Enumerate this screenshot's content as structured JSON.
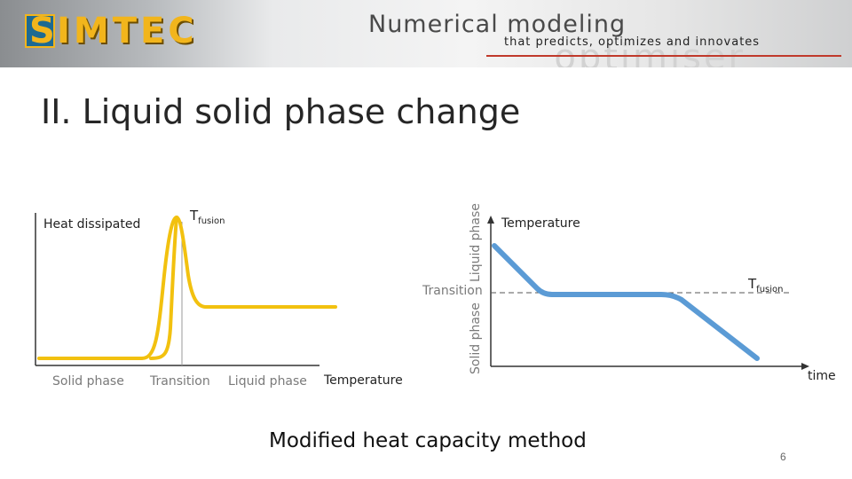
{
  "header": {
    "logo_text": "SIMTEC",
    "tagline_main": "Numerical modeling",
    "tagline_sub": "that predicts, optimizes and innovates",
    "bg_decoration": "optimiser"
  },
  "slide": {
    "title": "II. Liquid solid phase change",
    "caption": "Modified heat capacity method",
    "page_number": "6"
  },
  "chart_data": [
    {
      "type": "line",
      "ylabel": "Heat dissipated",
      "xlabel": "Temperature",
      "annotation": "Tfusion",
      "annotation_main": "T",
      "annotation_sub": "fusion",
      "regions": [
        "Solid phase",
        "Transition",
        "Liquid phase"
      ],
      "color": "#f2c10f"
    },
    {
      "type": "line",
      "ylabel": "Temperature",
      "xlabel": "time",
      "annotation": "Tfusion",
      "annotation_main": "T",
      "annotation_sub": "fusion",
      "regions": [
        "Solid phase",
        "Transition",
        "Liquid phase"
      ],
      "color": "#5b9bd5"
    }
  ]
}
